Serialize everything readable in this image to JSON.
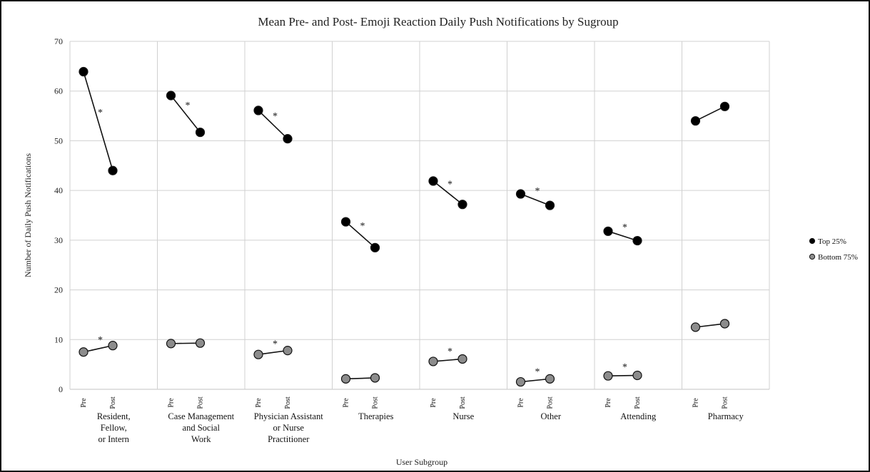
{
  "chart_data": {
    "type": "scatter",
    "title": "Mean Pre- and Post- Emoji Reaction Daily Push Notifications by Sugroup",
    "xlabel": "User Subgroup",
    "ylabel": "Number of Daily Push Notifications",
    "ylim": [
      0,
      70
    ],
    "yticks": [
      0,
      10,
      20,
      30,
      40,
      50,
      60,
      70
    ],
    "grid": true,
    "legend_position": "right",
    "point_labels": [
      "Pre",
      "Post"
    ],
    "significance_marker": "*",
    "categories": [
      {
        "label": "Resident, Fellow, or Intern",
        "label_lines": [
          "Resident,",
          "Fellow,",
          "or Intern"
        ]
      },
      {
        "label": "Case Management and Social Work",
        "label_lines": [
          "Case Management",
          "and Social",
          "Work"
        ]
      },
      {
        "label": "Physician Assistant or Nurse Practitioner",
        "label_lines": [
          "Physician Assistant",
          "or Nurse",
          "Practitioner"
        ]
      },
      {
        "label": "Therapies",
        "label_lines": [
          "Therapies"
        ]
      },
      {
        "label": "Nurse",
        "label_lines": [
          "Nurse"
        ]
      },
      {
        "label": "Other",
        "label_lines": [
          "Other"
        ]
      },
      {
        "label": "Attending",
        "label_lines": [
          "Attending"
        ]
      },
      {
        "label": "Pharmacy",
        "label_lines": [
          "Pharmacy"
        ]
      }
    ],
    "series": [
      {
        "name": "Top 25%",
        "color": "#000000",
        "values": [
          [
            63.9,
            44.0
          ],
          [
            59.1,
            51.7
          ],
          [
            56.1,
            50.4
          ],
          [
            33.7,
            28.5
          ],
          [
            41.9,
            37.2
          ],
          [
            39.3,
            37.0
          ],
          [
            31.8,
            29.9
          ],
          [
            54.0,
            56.9
          ]
        ],
        "significant": [
          true,
          true,
          true,
          true,
          true,
          true,
          true,
          false
        ]
      },
      {
        "name": "Bottom 75%",
        "color": "#8c8c8c",
        "values": [
          [
            7.5,
            8.8
          ],
          [
            9.2,
            9.3
          ],
          [
            7.0,
            7.8
          ],
          [
            2.1,
            2.3
          ],
          [
            5.6,
            6.1
          ],
          [
            1.5,
            2.1
          ],
          [
            2.7,
            2.8
          ],
          [
            12.5,
            13.2
          ]
        ],
        "significant": [
          true,
          false,
          true,
          false,
          true,
          true,
          true,
          false
        ]
      }
    ]
  }
}
